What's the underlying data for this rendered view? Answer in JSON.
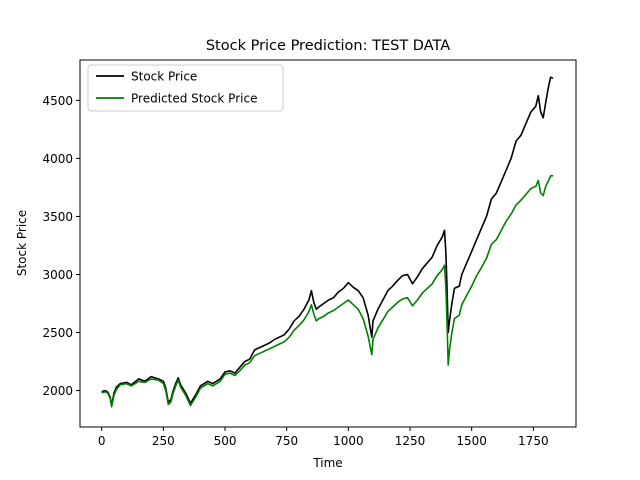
{
  "chart_data": {
    "type": "line",
    "title": "Stock Price Prediction: TEST DATA",
    "xlabel": "Time",
    "ylabel": "Stock Price",
    "xlim": [
      -88,
      1923
    ],
    "ylim": [
      1686,
      4848
    ],
    "xticks": [
      0,
      250,
      500,
      750,
      1000,
      1250,
      1500,
      1750
    ],
    "yticks": [
      2000,
      2500,
      3000,
      3500,
      4000,
      4500
    ],
    "grid": false,
    "legend_position": "top-left",
    "series": [
      {
        "name": "Stock Price",
        "color": "#000000",
        "points": [
          [
            0,
            1990
          ],
          [
            15,
            2000
          ],
          [
            25,
            1985
          ],
          [
            35,
            1940
          ],
          [
            40,
            1870
          ],
          [
            50,
            1980
          ],
          [
            60,
            2030
          ],
          [
            75,
            2060
          ],
          [
            100,
            2070
          ],
          [
            120,
            2050
          ],
          [
            150,
            2100
          ],
          [
            175,
            2080
          ],
          [
            200,
            2120
          ],
          [
            230,
            2100
          ],
          [
            250,
            2080
          ],
          [
            260,
            2020
          ],
          [
            270,
            1900
          ],
          [
            280,
            1920
          ],
          [
            290,
            2000
          ],
          [
            300,
            2060
          ],
          [
            310,
            2110
          ],
          [
            320,
            2050
          ],
          [
            340,
            1980
          ],
          [
            360,
            1890
          ],
          [
            380,
            1960
          ],
          [
            400,
            2040
          ],
          [
            430,
            2080
          ],
          [
            450,
            2060
          ],
          [
            480,
            2100
          ],
          [
            500,
            2160
          ],
          [
            520,
            2170
          ],
          [
            540,
            2150
          ],
          [
            560,
            2200
          ],
          [
            580,
            2250
          ],
          [
            600,
            2270
          ],
          [
            620,
            2350
          ],
          [
            650,
            2380
          ],
          [
            680,
            2410
          ],
          [
            700,
            2440
          ],
          [
            720,
            2460
          ],
          [
            740,
            2480
          ],
          [
            760,
            2530
          ],
          [
            780,
            2600
          ],
          [
            800,
            2640
          ],
          [
            820,
            2700
          ],
          [
            840,
            2780
          ],
          [
            850,
            2860
          ],
          [
            860,
            2760
          ],
          [
            870,
            2700
          ],
          [
            880,
            2720
          ],
          [
            900,
            2750
          ],
          [
            920,
            2780
          ],
          [
            940,
            2800
          ],
          [
            960,
            2850
          ],
          [
            980,
            2880
          ],
          [
            1000,
            2930
          ],
          [
            1020,
            2890
          ],
          [
            1040,
            2860
          ],
          [
            1060,
            2800
          ],
          [
            1080,
            2650
          ],
          [
            1095,
            2460
          ],
          [
            1100,
            2600
          ],
          [
            1120,
            2700
          ],
          [
            1140,
            2780
          ],
          [
            1160,
            2860
          ],
          [
            1180,
            2900
          ],
          [
            1200,
            2950
          ],
          [
            1220,
            2990
          ],
          [
            1240,
            3000
          ],
          [
            1260,
            2920
          ],
          [
            1280,
            2980
          ],
          [
            1300,
            3050
          ],
          [
            1320,
            3100
          ],
          [
            1340,
            3150
          ],
          [
            1360,
            3250
          ],
          [
            1380,
            3320
          ],
          [
            1390,
            3380
          ],
          [
            1395,
            3200
          ],
          [
            1400,
            2900
          ],
          [
            1405,
            2500
          ],
          [
            1410,
            2600
          ],
          [
            1420,
            2750
          ],
          [
            1430,
            2880
          ],
          [
            1450,
            2900
          ],
          [
            1460,
            3000
          ],
          [
            1480,
            3100
          ],
          [
            1500,
            3200
          ],
          [
            1520,
            3300
          ],
          [
            1540,
            3400
          ],
          [
            1560,
            3500
          ],
          [
            1580,
            3650
          ],
          [
            1600,
            3700
          ],
          [
            1620,
            3800
          ],
          [
            1640,
            3900
          ],
          [
            1660,
            4000
          ],
          [
            1680,
            4150
          ],
          [
            1700,
            4200
          ],
          [
            1720,
            4300
          ],
          [
            1740,
            4400
          ],
          [
            1760,
            4450
          ],
          [
            1770,
            4540
          ],
          [
            1780,
            4400
          ],
          [
            1790,
            4350
          ],
          [
            1800,
            4480
          ],
          [
            1810,
            4600
          ],
          [
            1820,
            4700
          ],
          [
            1830,
            4690
          ]
        ]
      },
      {
        "name": "Predicted Stock Price",
        "color": "#008000",
        "points": [
          [
            0,
            1980
          ],
          [
            15,
            1990
          ],
          [
            25,
            1975
          ],
          [
            35,
            1930
          ],
          [
            40,
            1860
          ],
          [
            50,
            1960
          ],
          [
            60,
            2010
          ],
          [
            75,
            2050
          ],
          [
            100,
            2060
          ],
          [
            120,
            2040
          ],
          [
            150,
            2080
          ],
          [
            175,
            2070
          ],
          [
            200,
            2100
          ],
          [
            230,
            2090
          ],
          [
            250,
            2060
          ],
          [
            260,
            2000
          ],
          [
            270,
            1880
          ],
          [
            280,
            1900
          ],
          [
            290,
            1980
          ],
          [
            300,
            2040
          ],
          [
            310,
            2090
          ],
          [
            320,
            2030
          ],
          [
            340,
            1960
          ],
          [
            360,
            1870
          ],
          [
            380,
            1940
          ],
          [
            400,
            2020
          ],
          [
            430,
            2060
          ],
          [
            450,
            2040
          ],
          [
            480,
            2080
          ],
          [
            500,
            2140
          ],
          [
            520,
            2150
          ],
          [
            540,
            2130
          ],
          [
            560,
            2170
          ],
          [
            580,
            2220
          ],
          [
            600,
            2240
          ],
          [
            620,
            2300
          ],
          [
            650,
            2330
          ],
          [
            680,
            2360
          ],
          [
            700,
            2380
          ],
          [
            720,
            2400
          ],
          [
            740,
            2420
          ],
          [
            760,
            2460
          ],
          [
            780,
            2520
          ],
          [
            800,
            2560
          ],
          [
            820,
            2610
          ],
          [
            840,
            2680
          ],
          [
            850,
            2740
          ],
          [
            860,
            2660
          ],
          [
            870,
            2600
          ],
          [
            880,
            2620
          ],
          [
            900,
            2640
          ],
          [
            920,
            2670
          ],
          [
            940,
            2690
          ],
          [
            960,
            2720
          ],
          [
            980,
            2750
          ],
          [
            1000,
            2780
          ],
          [
            1020,
            2740
          ],
          [
            1040,
            2700
          ],
          [
            1060,
            2620
          ],
          [
            1080,
            2470
          ],
          [
            1095,
            2310
          ],
          [
            1100,
            2440
          ],
          [
            1120,
            2540
          ],
          [
            1140,
            2610
          ],
          [
            1160,
            2680
          ],
          [
            1180,
            2720
          ],
          [
            1200,
            2760
          ],
          [
            1220,
            2790
          ],
          [
            1240,
            2800
          ],
          [
            1260,
            2730
          ],
          [
            1280,
            2780
          ],
          [
            1300,
            2840
          ],
          [
            1320,
            2880
          ],
          [
            1340,
            2920
          ],
          [
            1360,
            2990
          ],
          [
            1380,
            3040
          ],
          [
            1390,
            3080
          ],
          [
            1395,
            2900
          ],
          [
            1400,
            2600
          ],
          [
            1405,
            2220
          ],
          [
            1410,
            2350
          ],
          [
            1420,
            2500
          ],
          [
            1430,
            2620
          ],
          [
            1450,
            2650
          ],
          [
            1460,
            2740
          ],
          [
            1480,
            2820
          ],
          [
            1500,
            2900
          ],
          [
            1520,
            2990
          ],
          [
            1540,
            3060
          ],
          [
            1560,
            3140
          ],
          [
            1580,
            3260
          ],
          [
            1600,
            3300
          ],
          [
            1620,
            3380
          ],
          [
            1640,
            3460
          ],
          [
            1660,
            3520
          ],
          [
            1680,
            3600
          ],
          [
            1700,
            3640
          ],
          [
            1720,
            3690
          ],
          [
            1740,
            3740
          ],
          [
            1760,
            3760
          ],
          [
            1770,
            3810
          ],
          [
            1780,
            3700
          ],
          [
            1790,
            3680
          ],
          [
            1800,
            3760
          ],
          [
            1810,
            3800
          ],
          [
            1820,
            3850
          ],
          [
            1830,
            3850
          ]
        ]
      }
    ]
  }
}
